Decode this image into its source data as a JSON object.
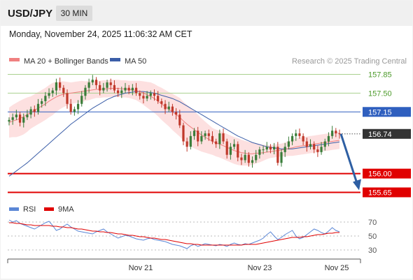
{
  "header": {
    "symbol": "USD/JPY",
    "timeframe": "30 MIN"
  },
  "timestamp": "Monday, November 24, 2025 11:06:32 AM CET",
  "colors": {
    "up_candle": "#3a7d3a",
    "down_candle": "#c0392b",
    "ma20": "#f08080",
    "bollinger_fill": "#fde0e0",
    "ma50": "#3b5ea8",
    "resistance": "#a9d18e",
    "pivot": "#2f5fbf",
    "support": "#e00000",
    "arrow": "#2e5fa3",
    "rsi": "#5b87d6",
    "rsi_ma": "#e00000",
    "current_price_bg": "#333333"
  },
  "chart_data": [
    {
      "type": "candlestick",
      "legend": [
        {
          "name": "MA 20 + Bollinger Bands",
          "color": "#f08080"
        },
        {
          "name": "MA 50",
          "color": "#3b5ea8"
        }
      ],
      "credit": "Research © 2025 Trading Central",
      "ylim": [
        155.5,
        158.0
      ],
      "xlabels": [
        "Nov 21",
        "Nov 23",
        "Nov 25"
      ],
      "levels": [
        {
          "label": "157.85",
          "value": 157.85,
          "kind": "resistance"
        },
        {
          "label": "157.50",
          "value": 157.5,
          "kind": "resistance"
        },
        {
          "label": "157.15",
          "value": 157.15,
          "kind": "pivot"
        },
        {
          "label": "156.74",
          "value": 156.74,
          "kind": "current"
        },
        {
          "label": "156.00",
          "value": 156.0,
          "kind": "support"
        },
        {
          "label": "155.65",
          "value": 155.65,
          "kind": "support"
        }
      ],
      "closes": [
        157.0,
        157.05,
        157.1,
        156.95,
        157.05,
        157.1,
        157.2,
        157.15,
        157.3,
        157.35,
        157.45,
        157.5,
        157.55,
        157.7,
        157.6,
        157.5,
        157.3,
        157.15,
        157.2,
        157.3,
        157.45,
        157.6,
        157.7,
        157.75,
        157.65,
        157.55,
        157.6,
        157.7,
        157.65,
        157.55,
        157.5,
        157.55,
        157.6,
        157.55,
        157.6,
        157.5,
        157.45,
        157.4,
        157.45,
        157.5,
        157.45,
        157.35,
        157.3,
        157.2,
        157.25,
        157.15,
        157.1,
        156.9,
        156.6,
        156.5,
        156.7,
        156.8,
        156.6,
        156.7,
        156.75,
        156.7,
        156.6,
        156.55,
        156.75,
        156.6,
        156.35,
        156.5,
        156.55,
        156.3,
        156.25,
        156.35,
        156.2,
        156.25,
        156.35,
        156.45,
        156.45,
        156.5,
        156.45,
        156.5,
        156.2,
        156.4,
        156.5,
        156.6,
        156.7,
        156.75,
        156.7,
        156.6,
        156.5,
        156.55,
        156.45,
        156.4,
        156.5,
        156.6,
        156.7,
        156.8,
        156.75,
        156.74
      ],
      "ma20": [
        156.95,
        156.98,
        157.0,
        157.03,
        157.06,
        157.1,
        157.14,
        157.18,
        157.22,
        157.26,
        157.3,
        157.35,
        157.39,
        157.43,
        157.46,
        157.48,
        157.49,
        157.5,
        157.51,
        157.52,
        157.53,
        157.54,
        157.55,
        157.56,
        157.57,
        157.57,
        157.58,
        157.58,
        157.59,
        157.59,
        157.59,
        157.58,
        157.58,
        157.57,
        157.56,
        157.55,
        157.53,
        157.5,
        157.47,
        157.44,
        157.4,
        157.35,
        157.3,
        157.25,
        157.2,
        157.15,
        157.1,
        157.05,
        156.98,
        156.92,
        156.87,
        156.82,
        156.77,
        156.72,
        156.68,
        156.64,
        156.6,
        156.57,
        156.55,
        156.52,
        156.49,
        156.46,
        156.43,
        156.41,
        156.39,
        156.38,
        156.37,
        156.37,
        156.38,
        156.38,
        156.39,
        156.4,
        156.41,
        156.42,
        156.43,
        156.44,
        156.45,
        156.47,
        156.48,
        156.5,
        156.51,
        156.52,
        156.53,
        156.54,
        156.55,
        156.56,
        156.57,
        156.58,
        156.59,
        156.6,
        156.61,
        156.62
      ],
      "band_width": [
        0.28,
        0.3,
        0.32,
        0.33,
        0.33,
        0.32,
        0.3,
        0.3,
        0.3,
        0.3,
        0.3,
        0.3,
        0.3,
        0.28,
        0.26,
        0.24,
        0.22,
        0.2,
        0.2,
        0.2,
        0.2,
        0.18,
        0.18,
        0.17,
        0.16,
        0.16,
        0.16,
        0.16,
        0.16,
        0.16,
        0.16,
        0.16,
        0.16,
        0.16,
        0.17,
        0.18,
        0.2,
        0.22,
        0.24,
        0.26,
        0.27,
        0.28,
        0.3,
        0.31,
        0.32,
        0.34,
        0.35,
        0.36,
        0.36,
        0.36,
        0.36,
        0.35,
        0.33,
        0.31,
        0.29,
        0.27,
        0.25,
        0.25,
        0.25,
        0.25,
        0.25,
        0.25,
        0.25,
        0.25,
        0.24,
        0.23,
        0.22,
        0.21,
        0.19,
        0.17,
        0.15,
        0.13,
        0.12,
        0.12,
        0.12,
        0.12,
        0.13,
        0.14,
        0.15,
        0.16,
        0.16,
        0.16,
        0.16,
        0.16,
        0.16,
        0.16,
        0.16,
        0.16,
        0.16,
        0.16,
        0.16,
        0.16
      ],
      "ma50": [
        155.95,
        156.0,
        156.05,
        156.1,
        156.15,
        156.2,
        156.26,
        156.32,
        156.38,
        156.44,
        156.5,
        156.56,
        156.62,
        156.68,
        156.74,
        156.8,
        156.86,
        156.92,
        156.97,
        157.02,
        157.07,
        157.12,
        157.17,
        157.22,
        157.26,
        157.3,
        157.34,
        157.38,
        157.41,
        157.44,
        157.46,
        157.48,
        157.5,
        157.51,
        157.52,
        157.53,
        157.53,
        157.53,
        157.52,
        157.51,
        157.5,
        157.48,
        157.46,
        157.44,
        157.42,
        157.4,
        157.37,
        157.34,
        157.3,
        157.26,
        157.22,
        157.18,
        157.14,
        157.1,
        157.06,
        157.02,
        156.98,
        156.94,
        156.9,
        156.86,
        156.82,
        156.78,
        156.74,
        156.7,
        156.67,
        156.64,
        156.61,
        156.58,
        156.56,
        156.54,
        156.52,
        156.5,
        156.49,
        156.48,
        156.47,
        156.46,
        156.46,
        156.46,
        156.46,
        156.47,
        156.48,
        156.49,
        156.5,
        156.51,
        156.52,
        156.53,
        156.54,
        156.55,
        156.56,
        156.57,
        156.58,
        156.59
      ],
      "projection": {
        "from": 156.74,
        "to": 155.65
      }
    },
    {
      "type": "line",
      "legend": [
        {
          "name": "RSI",
          "color": "#5b87d6"
        },
        {
          "name": "9MA",
          "color": "#e00000"
        }
      ],
      "ylim": [
        20,
        80
      ],
      "ticks": [
        "70",
        "50",
        "30"
      ],
      "tick_values": [
        70,
        50,
        30
      ],
      "rsi": [
        73,
        70,
        72,
        68,
        66,
        64,
        62,
        60,
        63,
        66,
        69,
        71,
        65,
        58,
        60,
        64,
        67,
        63,
        60,
        57,
        56,
        55,
        54,
        53,
        56,
        58,
        60,
        56,
        53,
        50,
        47,
        49,
        51,
        50,
        48,
        46,
        45,
        44,
        46,
        47,
        45,
        44,
        43,
        42,
        40,
        38,
        37,
        36,
        34,
        32,
        36,
        38,
        35,
        37,
        39,
        38,
        37,
        36,
        38,
        37,
        35,
        38,
        40,
        38,
        37,
        39,
        38,
        40,
        42,
        44,
        47,
        52,
        56,
        50,
        45,
        48,
        52,
        55,
        58,
        50,
        46,
        48,
        52,
        56,
        60,
        58,
        55,
        53,
        57,
        62,
        58,
        56
      ],
      "rsi_9ma": [
        69,
        69,
        68,
        68,
        67,
        66,
        66,
        65,
        65,
        65,
        65,
        65,
        64,
        64,
        63,
        63,
        62,
        62,
        61,
        60,
        60,
        59,
        58,
        57,
        57,
        56,
        56,
        55,
        55,
        54,
        53,
        53,
        52,
        51,
        51,
        50,
        49,
        49,
        48,
        47,
        47,
        46,
        45,
        45,
        44,
        43,
        42,
        41,
        40,
        39,
        39,
        38,
        38,
        37,
        37,
        37,
        37,
        37,
        37,
        37,
        37,
        37,
        37,
        37,
        37,
        38,
        38,
        38,
        38,
        39,
        40,
        41,
        42,
        43,
        44,
        45,
        46,
        47,
        48,
        48,
        48,
        49,
        49,
        50,
        51,
        52,
        52,
        53,
        54,
        54,
        55,
        55
      ]
    }
  ]
}
